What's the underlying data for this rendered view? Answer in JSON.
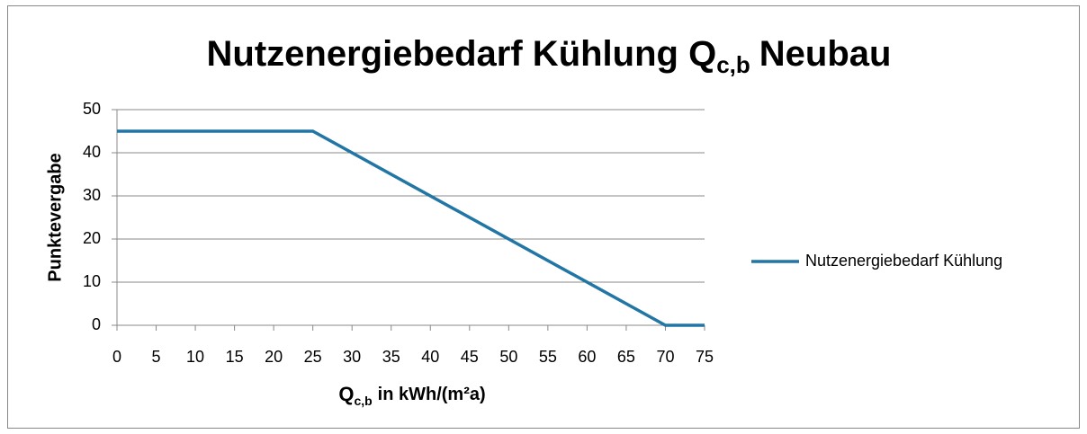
{
  "chart_data": {
    "type": "line",
    "title": [
      "Nutzenergiebedarf Kühlung Q",
      "c,b",
      "Neubau"
    ],
    "x_label": [
      "Q",
      "c,b",
      "in kWh/(m²a)"
    ],
    "y_label": "Punktevergabe",
    "x": [
      0,
      25,
      70,
      75
    ],
    "series": [
      {
        "name": "Nutzenergiebedarf Kühlung",
        "color": "#2276a6",
        "values": [
          45,
          45,
          0,
          0
        ]
      }
    ],
    "xlim": [
      0,
      75
    ],
    "xticks": [
      0,
      5,
      10,
      15,
      20,
      25,
      30,
      35,
      40,
      45,
      50,
      55,
      60,
      65,
      70,
      75
    ],
    "ylim": [
      0,
      50
    ],
    "yticks": [
      0,
      10,
      20,
      30,
      40,
      50
    ],
    "grid": true,
    "legend": "right"
  }
}
